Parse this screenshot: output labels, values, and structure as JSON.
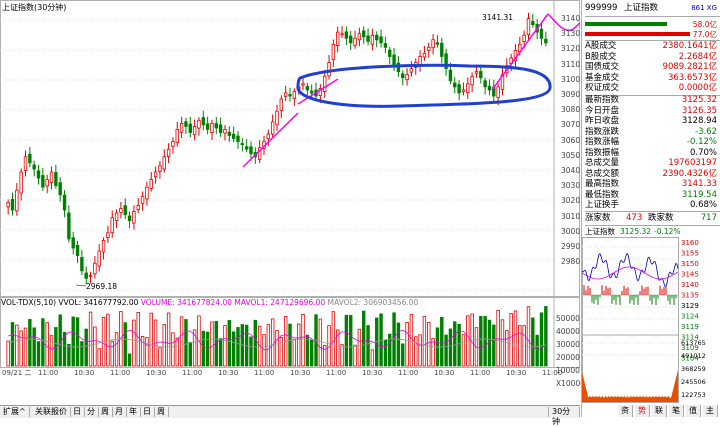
{
  "header": {
    "chart_title": "上证指数(30分钟)",
    "code": "999999",
    "name": "上证指数",
    "tag": "861 XG"
  },
  "price_axis": [
    "3140",
    "3130",
    "3120",
    "3110",
    "3100",
    "3090",
    "3080",
    "3070",
    "3060",
    "3050",
    "3040",
    "3030",
    "3020",
    "3010",
    "3000",
    "2990",
    "2980"
  ],
  "annotations": {
    "high": "3141.31",
    "low": "2969.18"
  },
  "volume": {
    "indicator": "VOL-TDX(5,10)",
    "vvol": "VVOL: 341677792.00",
    "volume": "VOLUME: 341677824.00",
    "mavol1": "MAVOL1: 247129696.00",
    "mavol2": "MAVOL2: 306903456.00",
    "axis": [
      "50000",
      "40000",
      "30000",
      "20000",
      "10000",
      "X10000"
    ]
  },
  "time_axis": [
    "09/21 二",
    "11:00",
    "10:30",
    "11:00",
    "10:30",
    "11:00",
    "10:30",
    "11:00",
    "10:30",
    "11:00",
    "10:30",
    "11:00",
    "10:30",
    "11:00",
    "10:30",
    "11:00"
  ],
  "bottom_tabs": [
    "扩展^",
    "关联报价",
    "日",
    "分",
    "周",
    "月",
    "年",
    "日",
    "周"
  ],
  "period_label": "30分钟",
  "side": {
    "bars": [
      {
        "value": "58.0亿",
        "color": "#e00000"
      },
      {
        "value": "77.0亿",
        "color": "#e00000"
      }
    ],
    "turnover": [
      {
        "k": "A股成交",
        "v": "2380.1641亿"
      },
      {
        "k": "B股成交",
        "v": "2.2684亿"
      },
      {
        "k": "国债成交",
        "v": "9089.2821亿"
      },
      {
        "k": "基金成交",
        "v": "363.6573亿"
      },
      {
        "k": "权证成交",
        "v": "0.0000亿"
      }
    ],
    "quote": [
      {
        "k": "最新指数",
        "v": "3125.32",
        "c": "red"
      },
      {
        "k": "今日开盘",
        "v": "3126.35",
        "c": "red"
      },
      {
        "k": "昨日收盘",
        "v": "3128.94",
        "c": "blk"
      },
      {
        "k": "指数涨跌",
        "v": "-3.62",
        "c": "green"
      },
      {
        "k": "指数涨幅",
        "v": "-0.12%",
        "c": "green"
      },
      {
        "k": "指数振幅",
        "v": "0.70%",
        "c": "blk"
      },
      {
        "k": "总成交量",
        "v": "197603197",
        "c": "red"
      },
      {
        "k": "总成交额",
        "v": "2390.4326亿",
        "c": "red"
      },
      {
        "k": "最高指数",
        "v": "3141.33",
        "c": "red"
      },
      {
        "k": "最低指数",
        "v": "3119.54",
        "c": "green"
      },
      {
        "k": "上证换手",
        "v": "0.68%",
        "c": "blk"
      }
    ],
    "updown": {
      "up_label": "涨家数",
      "up": "473",
      "down_label": "跌家数",
      "down": "717"
    },
    "mini": {
      "title": "上证指数",
      "price": "3125.32",
      "change": "-0.12%",
      "axis": [
        "3160",
        "3155",
        "3150",
        "3145",
        "3140",
        "3135",
        "3129",
        "3124",
        "3119",
        "3114",
        "3109",
        "3104"
      ],
      "vol_axis": [
        "613765",
        "491012",
        "368259",
        "245506",
        "122753"
      ]
    },
    "bottom_tabs": [
      "资",
      "势",
      "联",
      "笔",
      "值",
      "主"
    ]
  },
  "colors": {
    "up": "#e00000",
    "down": "#008000",
    "ma_magenta": "#ff00ff",
    "ellipse": "#2040d0"
  }
}
